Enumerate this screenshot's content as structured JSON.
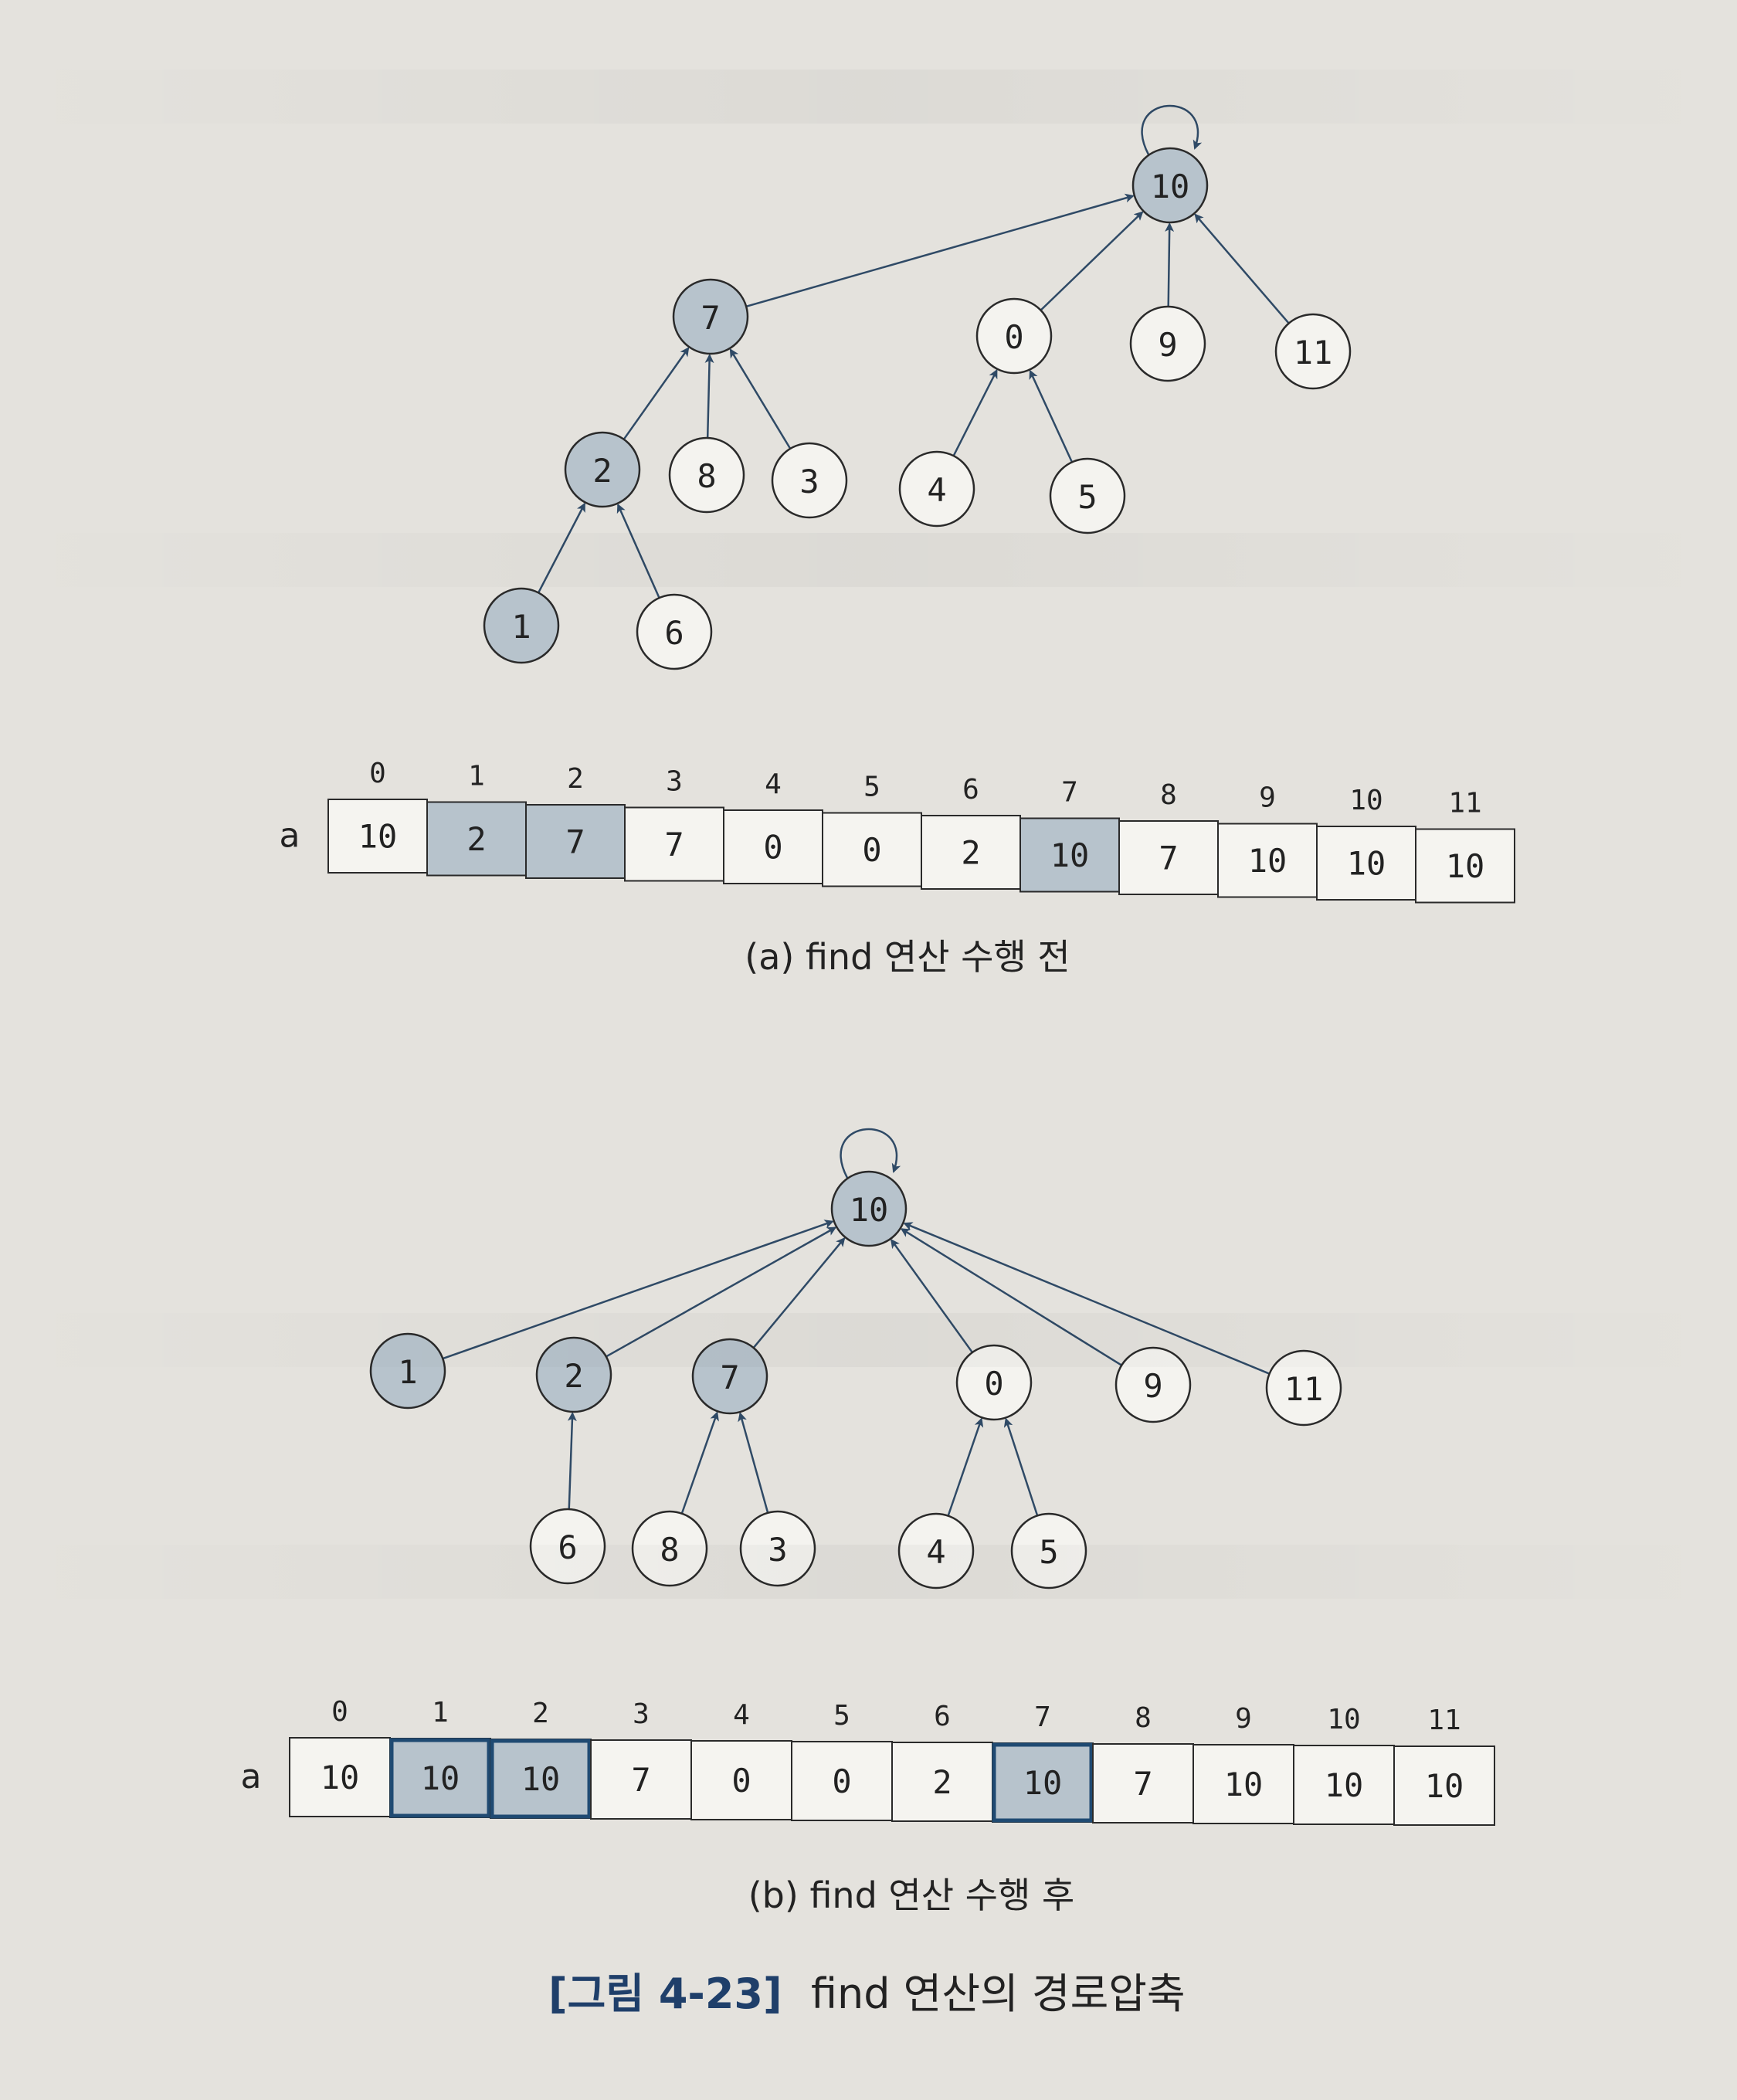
{
  "diagram_a": {
    "caption": "(a) find 연산 수행 전",
    "nodes": [
      {
        "id": "10",
        "label": "10",
        "shaded": true
      },
      {
        "id": "7",
        "label": "7",
        "shaded": true
      },
      {
        "id": "0",
        "label": "0",
        "shaded": false
      },
      {
        "id": "9",
        "label": "9",
        "shaded": false
      },
      {
        "id": "11",
        "label": "11",
        "shaded": false
      },
      {
        "id": "2",
        "label": "2",
        "shaded": true
      },
      {
        "id": "8",
        "label": "8",
        "shaded": false
      },
      {
        "id": "3",
        "label": "3",
        "shaded": false
      },
      {
        "id": "4",
        "label": "4",
        "shaded": false
      },
      {
        "id": "5",
        "label": "5",
        "shaded": false
      },
      {
        "id": "1",
        "label": "1",
        "shaded": true
      },
      {
        "id": "6",
        "label": "6",
        "shaded": false
      }
    ],
    "edges": [
      {
        "from": "7",
        "to": "10"
      },
      {
        "from": "0",
        "to": "10"
      },
      {
        "from": "9",
        "to": "10"
      },
      {
        "from": "11",
        "to": "10"
      },
      {
        "from": "2",
        "to": "7"
      },
      {
        "from": "8",
        "to": "7"
      },
      {
        "from": "3",
        "to": "7"
      },
      {
        "from": "4",
        "to": "0"
      },
      {
        "from": "5",
        "to": "0"
      },
      {
        "from": "1",
        "to": "2"
      },
      {
        "from": "6",
        "to": "2"
      }
    ],
    "array": {
      "name": "a",
      "indices": [
        "0",
        "1",
        "2",
        "3",
        "4",
        "5",
        "6",
        "7",
        "8",
        "9",
        "10",
        "11"
      ],
      "values": [
        "10",
        "2",
        "7",
        "7",
        "0",
        "0",
        "2",
        "10",
        "7",
        "10",
        "10",
        "10"
      ],
      "shaded": [
        false,
        true,
        true,
        false,
        false,
        false,
        false,
        true,
        false,
        false,
        false,
        false
      ]
    }
  },
  "diagram_b": {
    "caption": "(b) find 연산 수행 후",
    "nodes": [
      {
        "id": "10",
        "label": "10",
        "shaded": true
      },
      {
        "id": "1",
        "label": "1",
        "shaded": true
      },
      {
        "id": "2",
        "label": "2",
        "shaded": true
      },
      {
        "id": "7",
        "label": "7",
        "shaded": true
      },
      {
        "id": "0",
        "label": "0",
        "shaded": false
      },
      {
        "id": "9",
        "label": "9",
        "shaded": false
      },
      {
        "id": "11",
        "label": "11",
        "shaded": false
      },
      {
        "id": "6",
        "label": "6",
        "shaded": false
      },
      {
        "id": "8",
        "label": "8",
        "shaded": false
      },
      {
        "id": "3",
        "label": "3",
        "shaded": false
      },
      {
        "id": "4",
        "label": "4",
        "shaded": false
      },
      {
        "id": "5",
        "label": "5",
        "shaded": false
      }
    ],
    "edges": [
      {
        "from": "1",
        "to": "10"
      },
      {
        "from": "2",
        "to": "10"
      },
      {
        "from": "7",
        "to": "10"
      },
      {
        "from": "0",
        "to": "10"
      },
      {
        "from": "9",
        "to": "10"
      },
      {
        "from": "11",
        "to": "10"
      },
      {
        "from": "6",
        "to": "2"
      },
      {
        "from": "8",
        "to": "7"
      },
      {
        "from": "3",
        "to": "7"
      },
      {
        "from": "4",
        "to": "0"
      },
      {
        "from": "5",
        "to": "0"
      }
    ],
    "array": {
      "name": "a",
      "indices": [
        "0",
        "1",
        "2",
        "3",
        "4",
        "5",
        "6",
        "7",
        "8",
        "9",
        "10",
        "11"
      ],
      "values": [
        "10",
        "10",
        "10",
        "7",
        "0",
        "0",
        "2",
        "10",
        "7",
        "10",
        "10",
        "10"
      ],
      "shaded": [
        false,
        true,
        true,
        false,
        false,
        false,
        false,
        true,
        false,
        false,
        false,
        false
      ],
      "highlighted": [
        false,
        true,
        true,
        false,
        false,
        false,
        false,
        true,
        false,
        false,
        false,
        false
      ]
    }
  },
  "figure_caption": {
    "number": "[그림 4-23]",
    "text": "find 연산의 경로압축"
  },
  "colors": {
    "node_shaded": "#b7c3cc",
    "node_plain": "#f4f3ef",
    "stroke": "#2a2a2a",
    "edge": "#2f4a66",
    "highlight": "#1f4a72",
    "caption_blue": "#1f3f6a",
    "text": "#222222"
  }
}
